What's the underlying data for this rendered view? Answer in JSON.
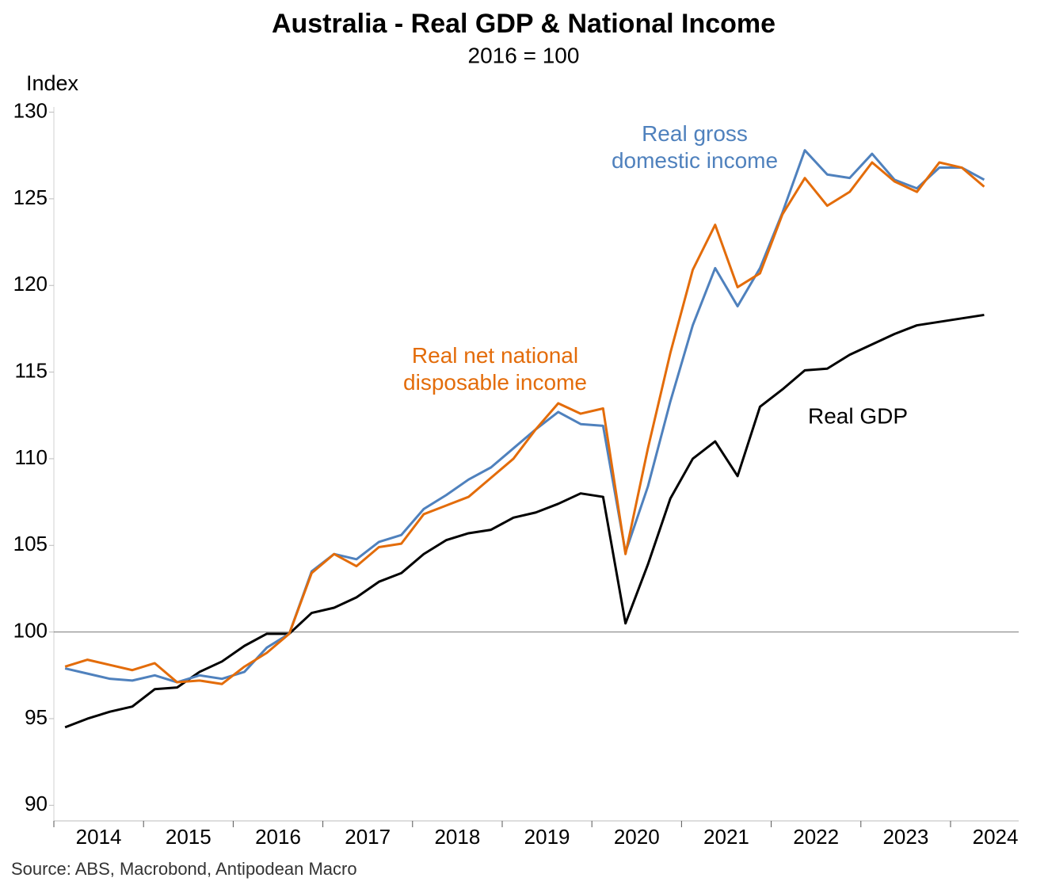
{
  "chart_data": {
    "type": "line",
    "title": "Australia - Real GDP & National Income",
    "subtitle": "2016 = 100",
    "y_label": "Index",
    "source": "Source: ABS, Macrobond, Antipodean Macro",
    "x": [
      2014.125,
      2014.375,
      2014.625,
      2014.875,
      2015.125,
      2015.375,
      2015.625,
      2015.875,
      2016.125,
      2016.375,
      2016.625,
      2016.875,
      2017.125,
      2017.375,
      2017.625,
      2017.875,
      2018.125,
      2018.375,
      2018.625,
      2018.875,
      2019.125,
      2019.375,
      2019.625,
      2019.875,
      2020.125,
      2020.375,
      2020.625,
      2020.875,
      2021.125,
      2021.375,
      2021.625,
      2021.875,
      2022.125,
      2022.375,
      2022.625,
      2022.875,
      2023.125,
      2023.375,
      2023.625,
      2023.875,
      2024.125,
      2024.375
    ],
    "series": [
      {
        "name": "Real GDP",
        "color": "#000000",
        "values": [
          94.5,
          95.0,
          95.4,
          95.7,
          96.7,
          96.8,
          97.7,
          98.3,
          99.2,
          99.9,
          99.9,
          101.1,
          101.4,
          102.0,
          102.9,
          103.4,
          104.5,
          105.3,
          105.7,
          105.9,
          106.6,
          106.9,
          107.4,
          108.0,
          107.8,
          100.5,
          103.9,
          107.7,
          110.0,
          111.0,
          109.0,
          113.0,
          114.0,
          115.1,
          115.2,
          116.0,
          116.6,
          117.2,
          117.7,
          117.9,
          118.1,
          118.3
        ]
      },
      {
        "name": "Real gross domestic income",
        "color": "#4f81bd",
        "values": [
          97.9,
          97.6,
          97.3,
          97.2,
          97.5,
          97.1,
          97.5,
          97.3,
          97.7,
          99.1,
          99.9,
          103.5,
          104.5,
          104.2,
          105.2,
          105.6,
          107.1,
          107.9,
          108.8,
          109.5,
          110.6,
          111.7,
          112.7,
          112.0,
          111.9,
          104.6,
          108.4,
          113.3,
          117.7,
          121.0,
          118.8,
          121.0,
          124.2,
          127.8,
          126.4,
          126.2,
          127.6,
          126.1,
          125.6,
          126.8,
          126.8,
          126.1
        ]
      },
      {
        "name": "Real net national disposable income",
        "color": "#e36c0a",
        "values": [
          98.0,
          98.4,
          98.1,
          97.8,
          98.2,
          97.1,
          97.2,
          97.0,
          98.0,
          98.8,
          99.9,
          103.4,
          104.5,
          103.8,
          104.9,
          105.1,
          106.8,
          107.3,
          107.8,
          108.9,
          110.0,
          111.7,
          113.2,
          112.6,
          112.9,
          104.5,
          110.6,
          116.1,
          120.9,
          123.5,
          119.9,
          120.7,
          124.1,
          126.2,
          124.6,
          125.4,
          127.1,
          126.0,
          125.4,
          127.1,
          126.8,
          125.7
        ]
      }
    ],
    "xlim": [
      2014,
      2024.76
    ],
    "xticks": [
      2014,
      2015,
      2016,
      2017,
      2018,
      2019,
      2020,
      2021,
      2022,
      2023,
      2024
    ],
    "ylim": [
      89.1,
      130.3
    ],
    "yticks": [
      90,
      95,
      100,
      105,
      110,
      115,
      120,
      125,
      130
    ],
    "hline": 100
  }
}
